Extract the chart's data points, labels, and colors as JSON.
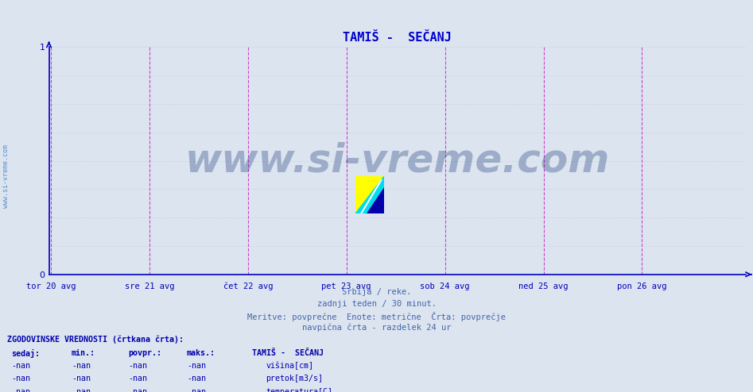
{
  "title": "TAMIŠ -  SEČANJ",
  "title_color": "#0000cc",
  "background_color": "#dce4f0",
  "plot_bg_color": "#dce4f0",
  "spine_color": "#0000bb",
  "ylim": [
    0,
    1
  ],
  "yticks": [
    0,
    1
  ],
  "tick_color": "#0000bb",
  "grid_color_h": "#c8d0e8",
  "grid_color_v": "#cc88cc",
  "vline_color": "#cc44cc",
  "x_labels": [
    "tor 20 avg",
    "sre 21 avg",
    "čet 22 avg",
    "pet 23 avg",
    "sob 24 avg",
    "ned 25 avg",
    "pon 26 avg"
  ],
  "x_positions": [
    0,
    1,
    2,
    3,
    4,
    5,
    6
  ],
  "xlim": [
    -0.02,
    7.05
  ],
  "watermark": "www.si-vreme.com",
  "watermark_color": "#0d2d6e",
  "watermark_alpha": 0.3,
  "watermark_fontsize": 36,
  "side_text": "www.si-vreme.com",
  "side_text_color": "#4488cc",
  "subtitle_lines": [
    "Srbija / reke.",
    "zadnji teden / 30 minut.",
    "Meritve: povprečne  Enote: metrične  Črta: povprečje",
    "navpična črta - razdelek 24 ur"
  ],
  "subtitle_color": "#4466aa",
  "legend_title": "ZGODOVINSKE VREDNOSTI (črtkana črta):",
  "legend_cols": [
    "sedaj:",
    "min.:",
    "povpr.:",
    "maks.:"
  ],
  "legend_rows": [
    [
      "-nan",
      "-nan",
      "-nan",
      "-nan"
    ],
    [
      "-nan",
      "-nan",
      "-nan",
      "-nan"
    ],
    [
      "-nan",
      "-nan",
      "-nan",
      "-nan"
    ]
  ],
  "legend_series_labels": [
    "višina[cm]",
    "pretok[m3/s]",
    "temperatura[C]"
  ],
  "legend_colors": [
    "#0000cc",
    "#008800",
    "#cc0000"
  ],
  "legend_color": "#0000aa",
  "legend_series_title": "TAMIŠ -  SEČANJ",
  "n_hgrid": 8,
  "logo_yellow": "#ffff00",
  "logo_cyan": "#00ddee",
  "logo_blue": "#0000aa"
}
